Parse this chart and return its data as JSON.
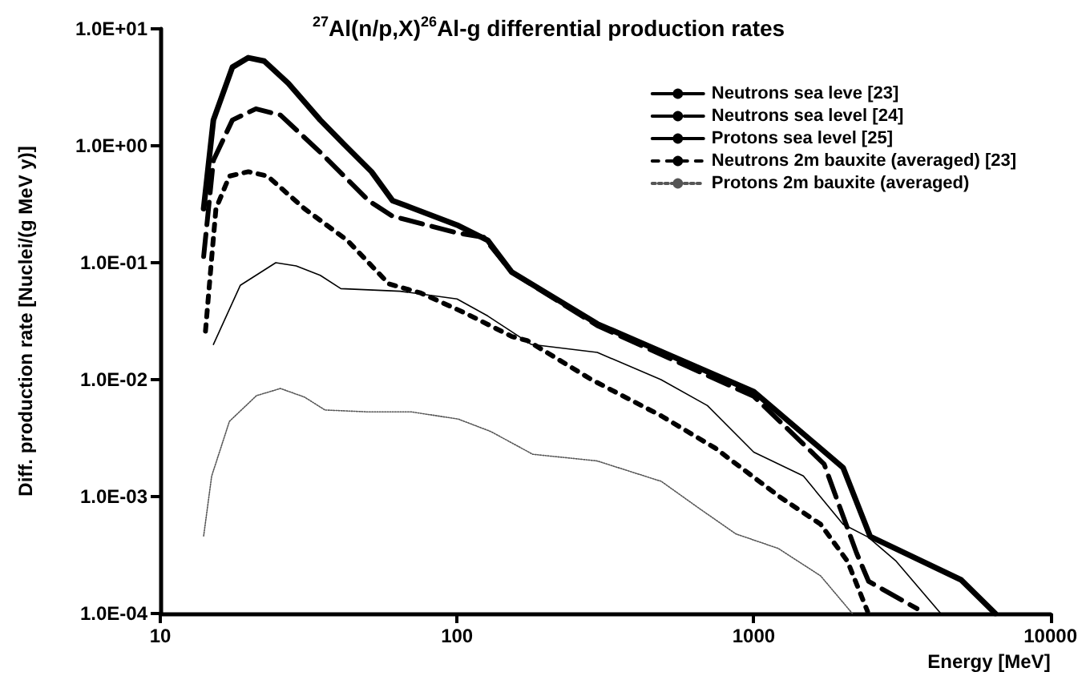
{
  "chart_data": {
    "type": "line",
    "title": "$^{27}$Al(n/p,X)$^{26}$Al-g differential production rates",
    "xlabel": "Energy [MeV]",
    "ylabel": "Diff. production rate [Nuclei/(g MeV y)]",
    "log": "xy",
    "xlim": [
      10,
      10000
    ],
    "xticks": [
      10,
      100,
      1000,
      10000
    ],
    "ylim": [
      0.0001,
      10
    ],
    "yticks": [
      {
        "value": 0.0001,
        "label": "1.0E-04"
      },
      {
        "value": 0.001,
        "label": "1.0E-03"
      },
      {
        "value": 0.01,
        "label": "1.0E-02"
      },
      {
        "value": 0.1,
        "label": "1.0E-01"
      },
      {
        "value": 1,
        "label": "1.0E+00"
      },
      {
        "value": 10,
        "label": "1.0E+01"
      }
    ],
    "legend": "top right",
    "marker": "none",
    "series": [
      {
        "name": "Neutrons sea leve [23]",
        "color": "#000000",
        "line_style": "solid",
        "x": [
          14,
          15.1,
          17.5,
          19.8,
          22.4,
          27,
          34.6,
          41.6,
          51.5,
          60.6,
          100,
          127,
          153,
          297,
          1000,
          2000,
          2470,
          5000,
          6520
        ],
        "values": [
          0.29,
          1.66,
          4.7,
          5.66,
          5.3,
          3.42,
          1.66,
          1.03,
          0.6,
          0.34,
          0.21,
          0.155,
          0.083,
          0.03,
          0.0079,
          0.00177,
          0.000455,
          0.000194,
          0.0001
        ]
      },
      {
        "name": "Neutrons sea level [24]",
        "color": "#000000",
        "line_style": "dashed",
        "x": [
          14,
          15.1,
          17.5,
          21,
          25.4,
          34.6,
          50.3,
          60.6,
          100,
          123,
          153,
          297,
          1000,
          1726,
          2220,
          2440,
          3550
        ],
        "values": [
          0.113,
          0.75,
          1.66,
          2.07,
          1.83,
          0.88,
          0.34,
          0.25,
          0.18,
          0.165,
          0.083,
          0.029,
          0.0072,
          0.0019,
          0.00033,
          0.000188,
          0.00011
        ]
      },
      {
        "name": "Protons sea level [25]",
        "color": "#000000",
        "line_style": "solid",
        "x": [
          15.1,
          18.6,
          24.5,
          28.7,
          34.6,
          40.6,
          64.4,
          100,
          127,
          178,
          297,
          487,
          698,
          1000,
          1470,
          2000,
          2430,
          3020,
          4270
        ],
        "values": [
          0.02,
          0.064,
          0.1,
          0.094,
          0.078,
          0.06,
          0.057,
          0.049,
          0.035,
          0.02,
          0.0171,
          0.01,
          0.006,
          0.0024,
          0.0015,
          0.00058,
          0.00045,
          0.00028,
          0.0001
        ]
      },
      {
        "name": "Neutrons 2m bauxite (averaged) [23]",
        "color": "#000000",
        "line_style": "dotted",
        "x": [
          14.2,
          14.9,
          15.4,
          17.1,
          19.8,
          23,
          30.6,
          42.7,
          58.9,
          75.6,
          105.6,
          153,
          173,
          284,
          488,
          741,
          1220,
          1680,
          2070,
          2420
        ],
        "values": [
          0.026,
          0.11,
          0.29,
          0.55,
          0.6,
          0.55,
          0.29,
          0.155,
          0.066,
          0.055,
          0.0375,
          0.0234,
          0.0215,
          0.01,
          0.0049,
          0.0026,
          0.001,
          0.00058,
          0.00028,
          0.000104
        ]
      },
      {
        "name": "Protons 2m bauxite (averaged)",
        "color": "#555555",
        "line_style": "dotted",
        "x": [
          14,
          14.9,
          17.1,
          21.1,
          25.4,
          30.6,
          35.9,
          50.1,
          70.2,
          101,
          130,
          180,
          296,
          488,
          656,
          870,
          1210,
          1680,
          2150
        ],
        "values": [
          0.00046,
          0.0015,
          0.0044,
          0.0073,
          0.0084,
          0.0071,
          0.0055,
          0.0053,
          0.0053,
          0.0046,
          0.0036,
          0.0023,
          0.00202,
          0.00135,
          0.00079,
          0.00048,
          0.00036,
          0.00021,
          0.0001
        ]
      }
    ]
  }
}
